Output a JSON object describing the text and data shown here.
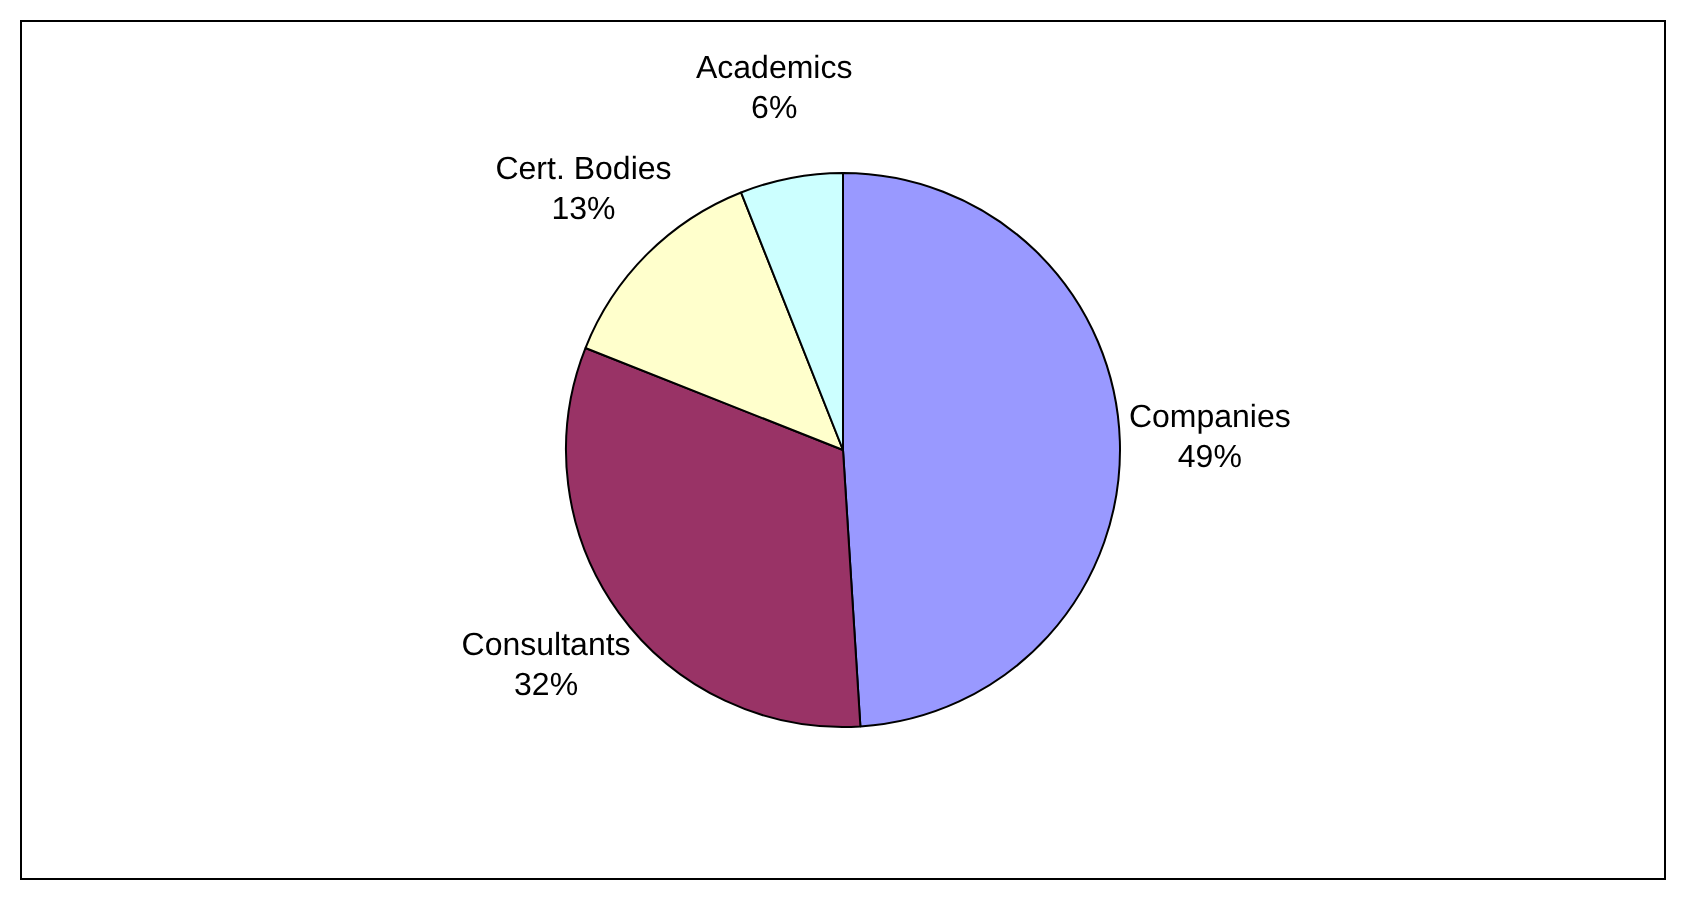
{
  "chart_data": {
    "type": "pie",
    "categories": [
      "Companies",
      "Consultants",
      "Cert. Bodies",
      "Academics"
    ],
    "values": [
      49,
      32,
      13,
      6
    ],
    "colors": [
      "#9999ff",
      "#993366",
      "#ffffcc",
      "#ccffff"
    ],
    "value_labels": [
      "49%",
      "32%",
      "13%",
      "6%"
    ],
    "legend": false
  }
}
